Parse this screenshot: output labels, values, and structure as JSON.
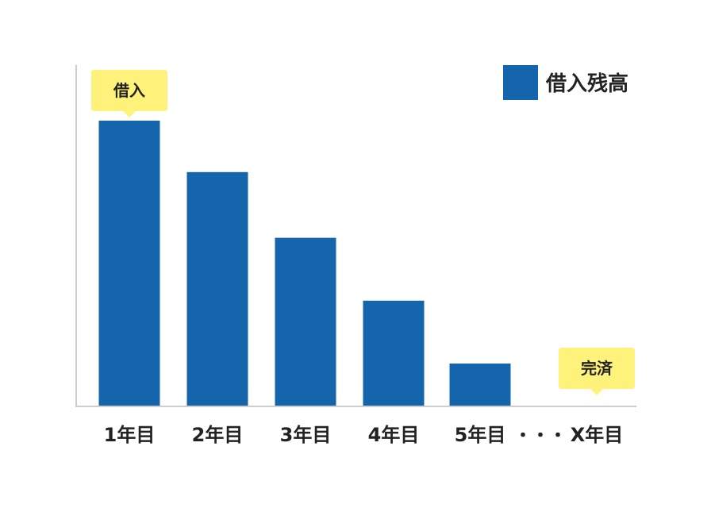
{
  "chart_data": {
    "type": "bar",
    "categories": [
      "1年目",
      "2年目",
      "3年目",
      "4年目",
      "5年目",
      "X年目"
    ],
    "values": [
      100,
      82,
      59,
      37,
      15,
      0
    ],
    "legend": {
      "label": "借入残高",
      "position": "top-right"
    },
    "ellipsis": "・・・",
    "annotations": [
      {
        "text": "借入",
        "category": "1年目"
      },
      {
        "text": "完済",
        "category": "X年目"
      }
    ],
    "grid": false
  },
  "colors": {
    "bar": "#1465ac",
    "callout": "#fff27a",
    "axis": "#cccccc",
    "text": "#222222"
  }
}
